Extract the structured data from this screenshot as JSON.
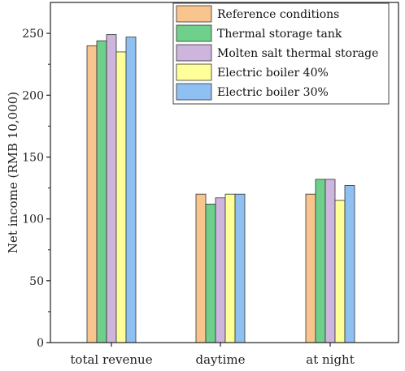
{
  "chart_data": {
    "type": "bar",
    "title": "",
    "xlabel": "",
    "ylabel": "Net income (RMB 10,000)",
    "ylim": [
      0,
      275
    ],
    "yticks": [
      0,
      50,
      100,
      150,
      200,
      250
    ],
    "grid": false,
    "legend_position": "top-right",
    "categories": [
      "total revenue",
      "daytime",
      "at night"
    ],
    "series": [
      {
        "name": "Reference conditions",
        "color": "#F9C58E",
        "values": [
          240,
          120,
          120
        ]
      },
      {
        "name": "Thermal storage tank",
        "color": "#6FD08C",
        "values": [
          244,
          112,
          132
        ]
      },
      {
        "name": "Molten salt thermal storage",
        "color": "#CDB5DD",
        "values": [
          249,
          117,
          132
        ]
      },
      {
        "name": "Electric boiler 40%",
        "color": "#FFFF99",
        "values": [
          235,
          120,
          115
        ]
      },
      {
        "name": "Electric boiler 30%",
        "color": "#8FC0F2",
        "values": [
          247,
          120,
          127
        ]
      }
    ]
  }
}
